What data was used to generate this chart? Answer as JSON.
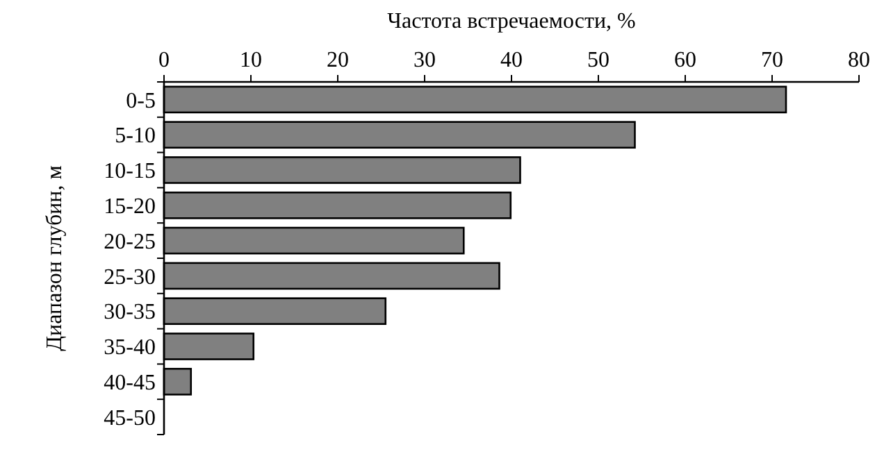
{
  "chart_data": {
    "type": "bar",
    "orientation": "horizontal",
    "xlabel": "Частота встречаемости, %",
    "ylabel": "Диапазон глубин, м",
    "categories": [
      "0-5",
      "5-10",
      "10-15",
      "15-20",
      "20-25",
      "25-30",
      "30-35",
      "35-40",
      "40-45",
      "45-50"
    ],
    "values": [
      71.6,
      54.2,
      41.0,
      39.9,
      34.5,
      38.6,
      25.5,
      10.3,
      3.1,
      0
    ],
    "color": "#808080",
    "xlim": [
      0,
      80
    ],
    "xticks": [
      0,
      10,
      20,
      30,
      40,
      50,
      60,
      70,
      80
    ],
    "grid": false
  }
}
